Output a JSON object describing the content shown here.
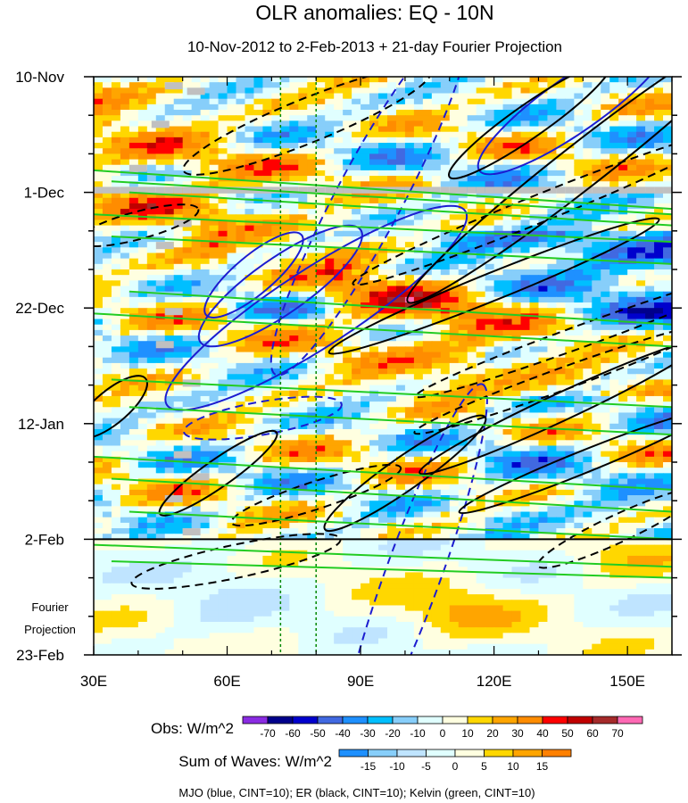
{
  "chart_data": {
    "type": "heatmap",
    "title": "OLR anomalies: EQ - 10N",
    "subtitle": "10-Nov-2012 to 2-Feb-2013 + 21-day Fourier Projection",
    "x_range": [
      30,
      160
    ],
    "x_ticks": [
      {
        "value": 30,
        "label": "30E"
      },
      {
        "value": 60,
        "label": "60E"
      },
      {
        "value": 90,
        "label": "90E"
      },
      {
        "value": 120,
        "label": "120E"
      },
      {
        "value": 150,
        "label": "150E"
      }
    ],
    "time_range_days": [
      0,
      105
    ],
    "y_ticks": [
      {
        "day": 0,
        "label": "10-Nov"
      },
      {
        "day": 21,
        "label": "1-Dec"
      },
      {
        "day": 42,
        "label": "22-Dec"
      },
      {
        "day": 63,
        "label": "12-Jan"
      },
      {
        "day": 84,
        "label": "2-Feb"
      },
      {
        "day": 105,
        "label": "23-Feb"
      }
    ],
    "projection_label": [
      "Fourier",
      "Projection"
    ],
    "reference_longitudes": [
      72,
      80
    ],
    "obs_colorbar": {
      "label": "Obs: W/m^2",
      "levels": [
        "-70",
        "-60",
        "-50",
        "-40",
        "-30",
        "-20",
        "-10",
        "0",
        "10",
        "20",
        "30",
        "40",
        "50",
        "60",
        "70"
      ],
      "colors": [
        "#8a2be2",
        "#00008b",
        "#0000cd",
        "#4169e1",
        "#1e90ff",
        "#00bfff",
        "#87cefa",
        "#e0ffff",
        "#ffffe0",
        "#ffd700",
        "#ffa500",
        "#ff8c00",
        "#ff0000",
        "#c00000",
        "#a52a2a",
        "#ff69b4"
      ]
    },
    "waves_colorbar": {
      "label": "Sum of Waves: W/m^2",
      "levels": [
        "-15",
        "-10",
        "-5",
        "0",
        "5",
        "10",
        "15"
      ],
      "colors": [
        "#1e90ff",
        "#87cefa",
        "#bfe4ff",
        "#e0ffff",
        "#ffffe0",
        "#ffd700",
        "#ffa500",
        "#ff8000"
      ]
    },
    "contour_series": [
      {
        "name": "MJO",
        "color": "blue",
        "cint": 10
      },
      {
        "name": "ER",
        "color": "black",
        "cint": 10
      },
      {
        "name": "Kelvin",
        "color": "green",
        "cint": 10
      }
    ],
    "footer": "MJO (blue, CINT=10); ER (black, CINT=10); Kelvin (green, CINT=10)"
  }
}
